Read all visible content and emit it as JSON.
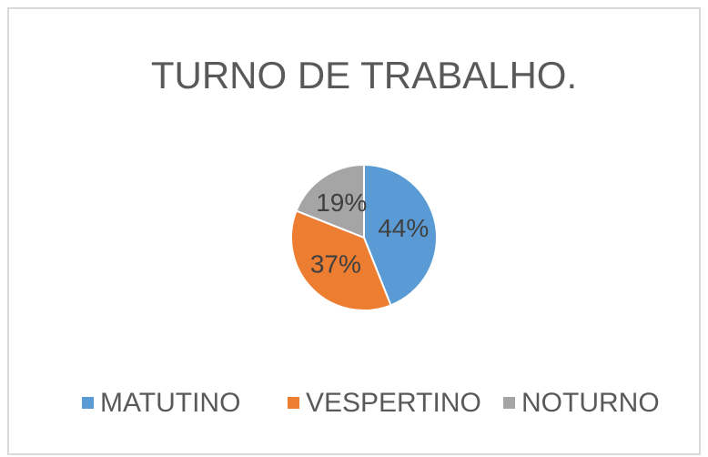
{
  "chart_data": {
    "type": "pie",
    "title": "TURNO DE TRABALHO.",
    "categories": [
      "MATUTINO",
      "VESPERTINO",
      "NOTURNO"
    ],
    "values": [
      44,
      37,
      19
    ],
    "value_labels": [
      "44%",
      "37%",
      "19%"
    ],
    "colors": [
      "#5b9bd5",
      "#ed7d31",
      "#a5a5a5"
    ]
  }
}
